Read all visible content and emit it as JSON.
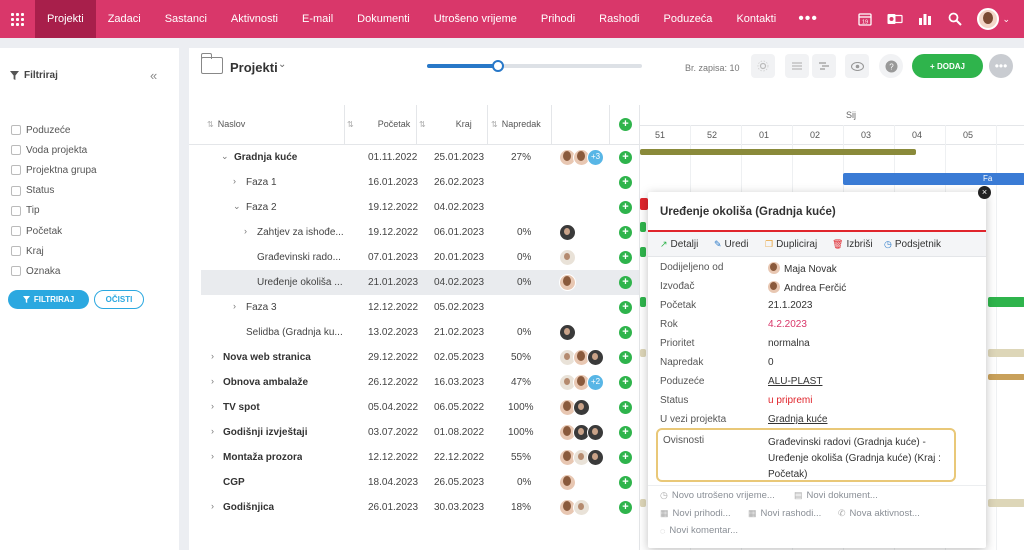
{
  "nav": {
    "items": [
      "Projekti",
      "Zadaci",
      "Sastanci",
      "Aktivnosti",
      "E-mail",
      "Dokumenti",
      "Utrošeno vrijeme",
      "Prihodi",
      "Rashodi",
      "Poduzeća",
      "Kontakti"
    ],
    "more": "•••",
    "calendar_day": "19",
    "colors": {
      "bar": "#d9376a",
      "active": "#a81f4b"
    }
  },
  "sidebar": {
    "title": "Filtriraj",
    "collapse": "«",
    "filters": [
      "Poduzeće",
      "Voda projekta",
      "Projektna grupa",
      "Status",
      "Tip",
      "Početak",
      "Kraj",
      "Oznaka"
    ],
    "apply_button": "FILTRIRAJ",
    "clear_button": "OČISTI"
  },
  "toolbar": {
    "title": "Projekti",
    "zoom_level": 0.33,
    "record_count": "Br. zapisa: 10",
    "add_button": "+ DODAJ"
  },
  "table": {
    "headers": {
      "name": "Naslov",
      "start": "Početak",
      "end": "Kraj",
      "progress": "Napredak"
    },
    "rows": [
      {
        "name": "Gradnja kuće",
        "start": "01.11.2022",
        "end": "25.01.2023",
        "progress": "27%",
        "count": "+3"
      },
      {
        "name": "Faza 1",
        "start": "16.01.2023",
        "end": "26.02.2023",
        "progress": ""
      },
      {
        "name": "Faza 2",
        "start": "19.12.2022",
        "end": "04.02.2023",
        "progress": ""
      },
      {
        "name": "Zahtjev za ishođe...",
        "start": "19.12.2022",
        "end": "06.01.2023",
        "progress": "0%"
      },
      {
        "name": "Građevinski rado...",
        "start": "07.01.2023",
        "end": "20.01.2023",
        "progress": "0%"
      },
      {
        "name": "Uređenje okoliša ...",
        "start": "21.01.2023",
        "end": "04.02.2023",
        "progress": "0%"
      },
      {
        "name": "Faza 3",
        "start": "12.12.2022",
        "end": "05.02.2023",
        "progress": ""
      },
      {
        "name": "Selidba (Gradnja ku...",
        "start": "13.02.2023",
        "end": "21.02.2023",
        "progress": "0%"
      },
      {
        "name": "Nova web stranica",
        "start": "29.12.2022",
        "end": "02.05.2023",
        "progress": "50%"
      },
      {
        "name": "Obnova ambalaže",
        "start": "26.12.2022",
        "end": "16.03.2023",
        "progress": "47%",
        "count": "+2"
      },
      {
        "name": "TV spot",
        "start": "05.04.2022",
        "end": "06.05.2022",
        "progress": "100%"
      },
      {
        "name": "Godišnji izvještaji",
        "start": "03.07.2022",
        "end": "01.08.2022",
        "progress": "100%"
      },
      {
        "name": "Montaža prozora",
        "start": "12.12.2022",
        "end": "22.12.2022",
        "progress": "55%"
      },
      {
        "name": "CGP",
        "start": "18.04.2023",
        "end": "26.05.2023",
        "progress": "0%"
      },
      {
        "name": "Godišnjica",
        "start": "26.01.2023",
        "end": "30.03.2023",
        "progress": "18%"
      }
    ]
  },
  "gantt": {
    "month": "Sij",
    "weeks": [
      "51",
      "52",
      "01",
      "02",
      "03",
      "04",
      "05"
    ],
    "bar_label": "Fa"
  },
  "popup": {
    "title": "Uređenje okoliša (Gradnja kuće)",
    "actions": [
      "Detalji",
      "Uredi",
      "Dupliciraj",
      "Izbriši",
      "Podsjetnik"
    ],
    "fields": [
      {
        "k": "Dodijeljeno od",
        "v": "Maja Novak"
      },
      {
        "k": "Izvođač",
        "v": "Andrea Ferčić"
      },
      {
        "k": "Početak",
        "v": "21.1.2023"
      },
      {
        "k": "Rok",
        "v": "4.2.2023"
      },
      {
        "k": "Prioritet",
        "v": "normalna"
      },
      {
        "k": "Napredak",
        "v": "0"
      },
      {
        "k": "Poduzeće",
        "v": "ALU-PLAST"
      },
      {
        "k": "Status",
        "v": "u pripremi"
      },
      {
        "k": "U vezi projekta",
        "v": "Gradnja kuće"
      }
    ],
    "dependencies_label": "Ovisnosti",
    "dependencies_value": "Građevinski radovi (Gradnja kuće) - Uređenje okoliša (Gradnja kuće) (Kraj : Početak)",
    "quick_actions": [
      "Novo utrošeno vrijeme...",
      "Novi dokument...",
      "Novi prihodi...",
      "Novi rashodi...",
      "Nova aktivnost...",
      "Novi komentar..."
    ],
    "accent": "#e0252c"
  }
}
